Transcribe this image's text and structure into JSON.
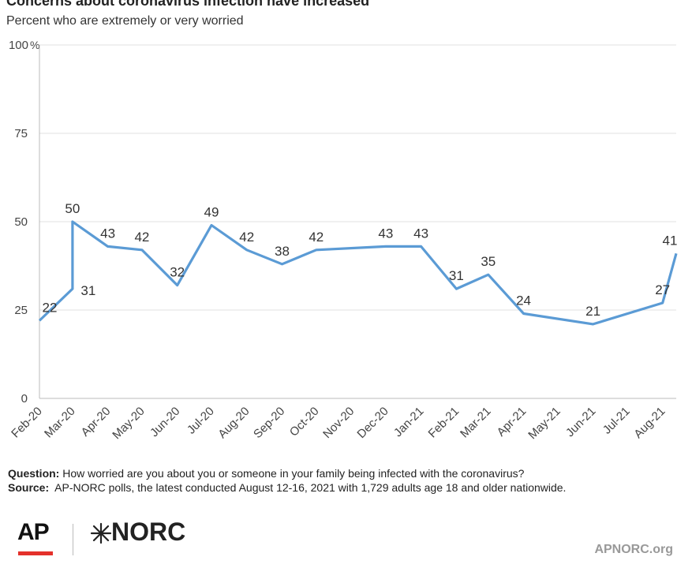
{
  "header": {
    "title": "Concerns about coronavirus infection have increased",
    "subtitle": "Percent who are extremely or very worried"
  },
  "chart_data": {
    "type": "line",
    "y_ticks": [
      "0",
      "25",
      "50",
      "75",
      "100"
    ],
    "y_unit": "%",
    "ylim": [
      0,
      100
    ],
    "grid": true,
    "x_tick_labels": [
      "Feb-20",
      "Mar-20",
      "Apr-20",
      "May-20",
      "Jun-20",
      "Jul-20",
      "Aug-20",
      "Sep-20",
      "Oct-20",
      "Nov-20",
      "Dec-20",
      "Jan-21",
      "Feb-21",
      "Mar-21",
      "Apr-21",
      "May-21",
      "Jun-21",
      "Jul-21",
      "Aug-21"
    ],
    "series": [
      {
        "color": "#5b9bd5",
        "points": [
          {
            "x": "2020-02-20",
            "y": 22
          },
          {
            "x": "2020-03-20",
            "y": 31
          },
          {
            "x": "2020-03-20",
            "y": 50
          },
          {
            "x": "2020-04-20",
            "y": 43
          },
          {
            "x": "2020-05-20",
            "y": 42
          },
          {
            "x": "2020-06-20",
            "y": 32
          },
          {
            "x": "2020-07-20",
            "y": 49
          },
          {
            "x": "2020-08-20",
            "y": 42
          },
          {
            "x": "2020-09-20",
            "y": 38
          },
          {
            "x": "2020-10-20",
            "y": 42
          },
          {
            "x": "2020-12-20",
            "y": 43
          },
          {
            "x": "2021-01-20",
            "y": 43
          },
          {
            "x": "2021-02-20",
            "y": 31
          },
          {
            "x": "2021-03-20",
            "y": 35
          },
          {
            "x": "2021-04-20",
            "y": 24
          },
          {
            "x": "2021-06-20",
            "y": 21
          },
          {
            "x": "2021-08-20",
            "y": 27
          },
          {
            "x": "2021-09-01",
            "y": 41
          }
        ]
      }
    ]
  },
  "footer": {
    "question_label": "Question:",
    "question_text": "How worried are you about you or someone in your family being infected with the coronavirus?",
    "source_label": "Source:",
    "source_text": "AP-NORC polls, the latest conducted August 12-16, 2021 with 1,729 adults age 18 and older nationwide.",
    "ap_logo": "AP",
    "norc_logo": "NORC",
    "url": "APNORC.org"
  },
  "colors": {
    "line": "#5b9bd5",
    "ap_red": "#e4312b",
    "grid": "#e0e0e0"
  }
}
